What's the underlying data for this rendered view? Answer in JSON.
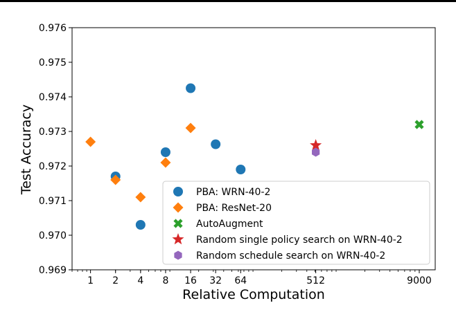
{
  "chart_data": {
    "type": "scatter",
    "title": "",
    "xlabel": "Relative Computation",
    "ylabel": "Test Accuracy",
    "xscale": "log",
    "xlim": [
      0.6,
      14000
    ],
    "ylim": [
      0.969,
      0.976
    ],
    "x_ticks": [
      1,
      2,
      4,
      8,
      16,
      32,
      64,
      512,
      9000
    ],
    "x_tick_labels": [
      "1",
      "2",
      "4",
      "8",
      "16",
      "32",
      "64",
      "512",
      "9000"
    ],
    "y_ticks": [
      0.969,
      0.97,
      0.971,
      0.972,
      0.973,
      0.974,
      0.975,
      0.976
    ],
    "y_tick_labels": [
      "0.969",
      "0.970",
      "0.971",
      "0.972",
      "0.973",
      "0.974",
      "0.975",
      "0.976"
    ],
    "grid": false,
    "legend_position": "lower right",
    "series": [
      {
        "name": "PBA: WRN-40-2",
        "marker": "circle",
        "color": "#1f77b4",
        "points": [
          {
            "x": 2,
            "y": 0.9717
          },
          {
            "x": 4,
            "y": 0.9703
          },
          {
            "x": 8,
            "y": 0.9724
          },
          {
            "x": 16,
            "y": 0.97425
          },
          {
            "x": 32,
            "y": 0.97263
          },
          {
            "x": 64,
            "y": 0.9719
          }
        ]
      },
      {
        "name": "PBA: ResNet-20",
        "marker": "diamond",
        "color": "#ff7f0e",
        "points": [
          {
            "x": 1,
            "y": 0.9727
          },
          {
            "x": 2,
            "y": 0.9716
          },
          {
            "x": 4,
            "y": 0.9711
          },
          {
            "x": 8,
            "y": 0.9721
          },
          {
            "x": 16,
            "y": 0.9731
          }
        ]
      },
      {
        "name": "AutoAugment",
        "marker": "x",
        "color": "#2ca02c",
        "points": [
          {
            "x": 9000,
            "y": 0.9732
          }
        ]
      },
      {
        "name": "Random single policy search on WRN-40-2",
        "marker": "star",
        "color": "#d62728",
        "points": [
          {
            "x": 512,
            "y": 0.9726
          }
        ]
      },
      {
        "name": "Random schedule search on WRN-40-2",
        "marker": "hexagon",
        "color": "#9467bd",
        "points": [
          {
            "x": 512,
            "y": 0.9724
          }
        ]
      }
    ]
  }
}
